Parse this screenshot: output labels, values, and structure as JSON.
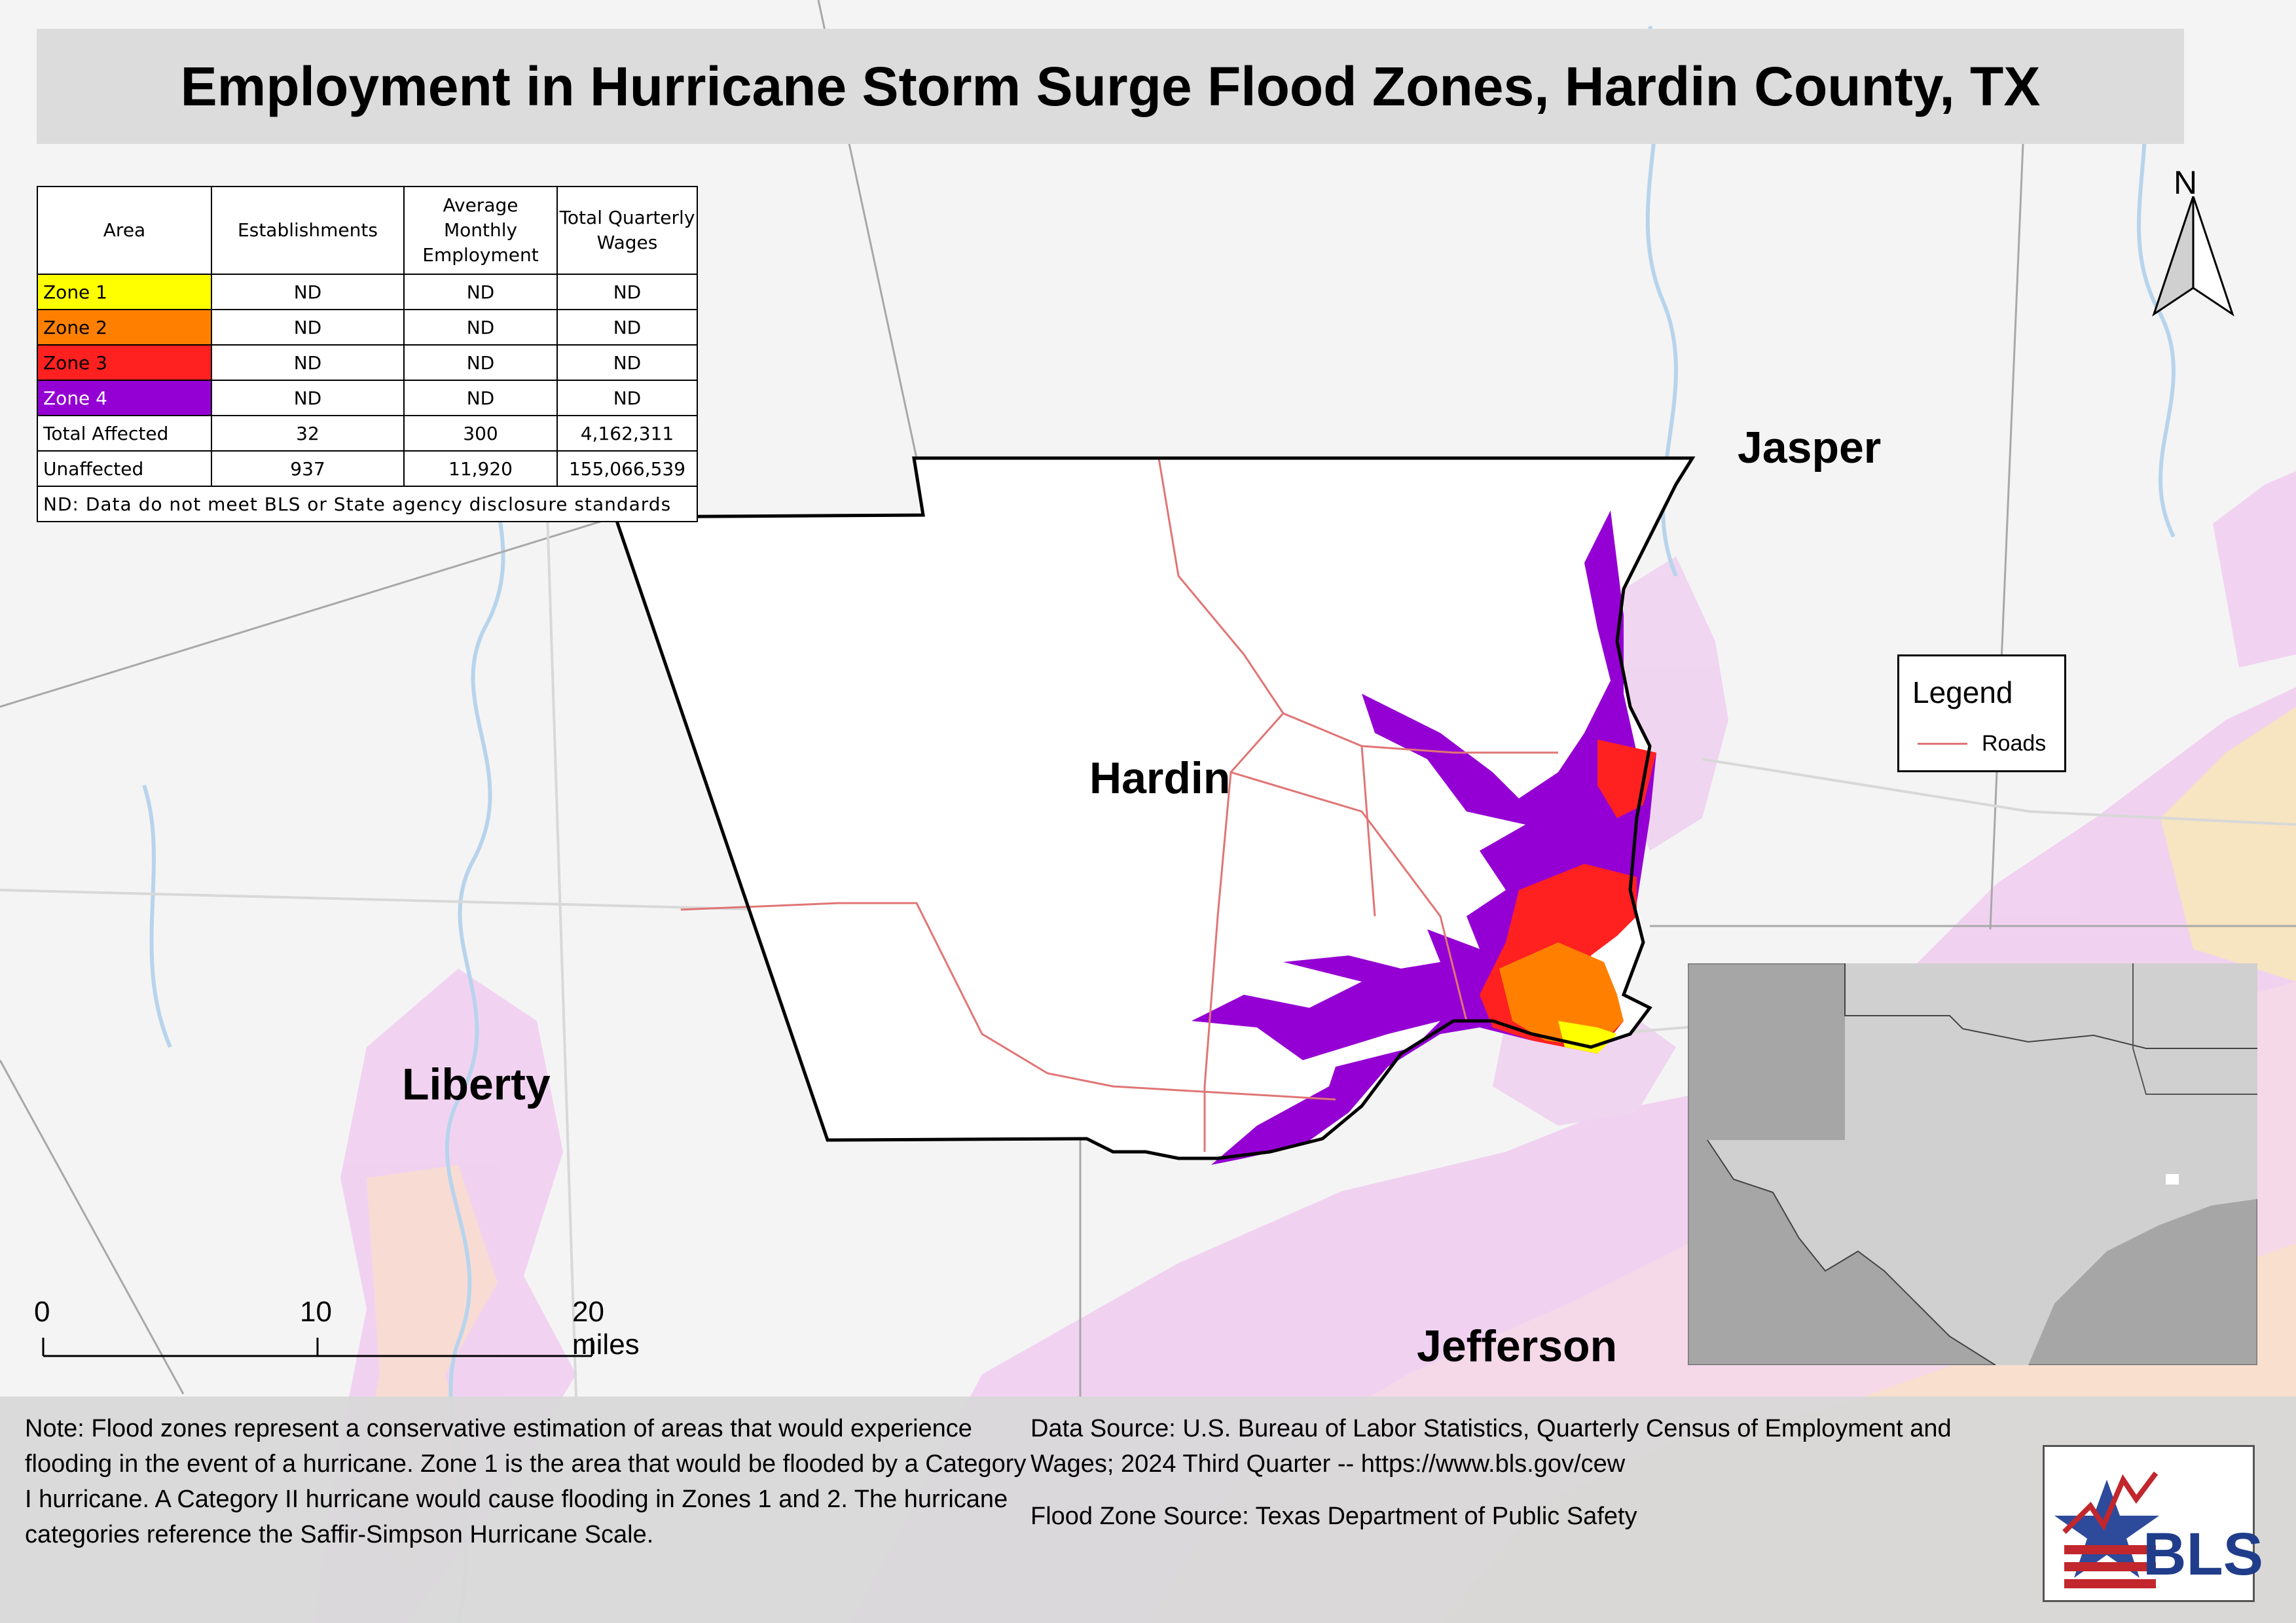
{
  "title": "Employment in Hurricane Storm Surge Flood Zones, Hardin County, TX",
  "table": {
    "headers": [
      "Area",
      "Establishments",
      "Average Monthly Employment",
      "Total Quarterly Wages"
    ],
    "rows": [
      {
        "area": "Zone 1",
        "establishments": "ND",
        "employment": "ND",
        "wages": "ND",
        "color": "#ffff00"
      },
      {
        "area": "Zone 2",
        "establishments": "ND",
        "employment": "ND",
        "wages": "ND",
        "color": "#ff8000"
      },
      {
        "area": "Zone 3",
        "establishments": "ND",
        "employment": "ND",
        "wages": "ND",
        "color": "#ff2020"
      },
      {
        "area": "Zone 4",
        "establishments": "ND",
        "employment": "ND",
        "wages": "ND",
        "color": "#9400d3"
      },
      {
        "area": "Total Affected",
        "establishments": "32",
        "employment": "300",
        "wages": "4,162,311"
      },
      {
        "area": "Unaffected",
        "establishments": "937",
        "employment": "11,920",
        "wages": "155,066,539"
      }
    ],
    "footnote": "ND: Data do not meet BLS or State agency disclosure standards"
  },
  "counties": {
    "hardin": "Hardin",
    "jasper": "Jasper",
    "liberty": "Liberty",
    "jefferson": "Jefferson"
  },
  "legend": {
    "title": "Legend",
    "roads_label": "Roads",
    "roads_color": "#e07575"
  },
  "north_label": "N",
  "scale": {
    "labels": [
      "0",
      "10",
      "20 miles"
    ]
  },
  "note": "Note: Flood zones represent a conservative estimation of areas that would experience flooding in the event of a hurricane. Zone 1 is the area that would be flooded by a Category I hurricane. A Category II hurricane would cause flooding in Zones 1 and 2. The hurricane categories reference the Saffir-Simpson Hurricane Scale.",
  "data_source": "Data Source: U.S. Bureau of Labor Statistics, Quarterly Census of Employment and Wages; 2024 Third Quarter -- https://www.bls.gov/cew",
  "flood_source": "Flood Zone Source: Texas Department of Public Safety",
  "logo_text": "BLS"
}
